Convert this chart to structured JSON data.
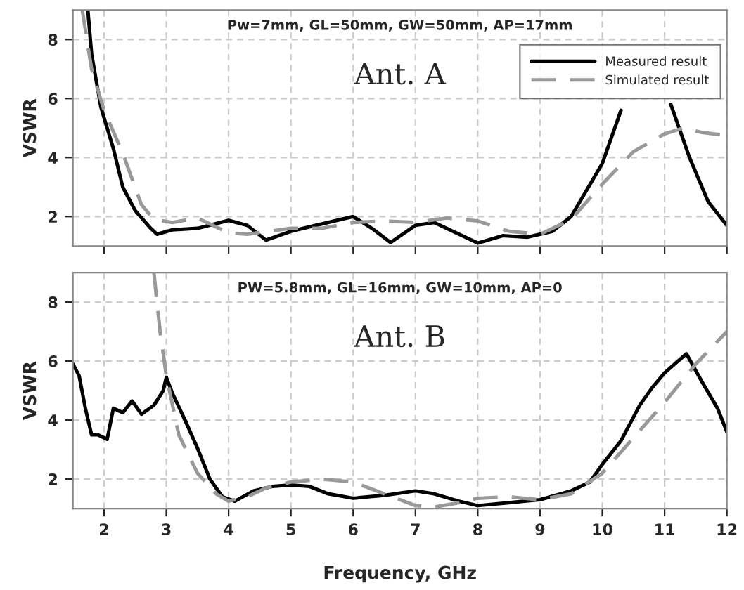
{
  "chart_data": [
    {
      "type": "line",
      "ylabel": "VSWR",
      "xlim": [
        1.5,
        12
      ],
      "ylim": [
        1,
        9
      ],
      "xticks": [
        2,
        3,
        4,
        5,
        6,
        7,
        8,
        9,
        10,
        11,
        12
      ],
      "yticks": [
        2,
        4,
        6,
        8
      ],
      "tick_labels": "y",
      "grid": true,
      "legend": "top right",
      "annotations": [
        "Pw=7mm, GL=50mm, GW=50mm, AP=17mm",
        "Ant. A"
      ],
      "series": [
        {
          "name": "Measured result",
          "color": "#000000",
          "line_style": "solid",
          "x": [
            1.74,
            1.8,
            1.95,
            2.15,
            2.3,
            2.5,
            2.75,
            2.85,
            3.1,
            3.5,
            4.0,
            4.3,
            4.6,
            5.0,
            5.5,
            6.0,
            6.3,
            6.6,
            7.0,
            7.3,
            7.7,
            8.0,
            8.4,
            8.8,
            9.2,
            9.5,
            10.0,
            10.3,
            10.7,
            11.1,
            11.4,
            11.7,
            12.0
          ],
          "values": [
            9,
            7.5,
            5.7,
            4.3,
            3.0,
            2.2,
            1.6,
            1.4,
            1.55,
            1.6,
            1.87,
            1.7,
            1.2,
            1.5,
            1.75,
            2.0,
            1.6,
            1.12,
            1.7,
            1.8,
            1.4,
            1.1,
            1.35,
            1.3,
            1.5,
            2.0,
            3.8,
            5.6,
            null,
            5.8,
            4.0,
            2.5,
            1.7
          ]
        },
        {
          "name": "Simulated result",
          "color": "#999999",
          "line_style": "dashed",
          "x": [
            1.65,
            1.8,
            2.0,
            2.3,
            2.6,
            2.8,
            3.1,
            3.5,
            4.0,
            4.3,
            5.0,
            5.5,
            6.0,
            6.5,
            7.0,
            7.5,
            8.0,
            8.5,
            9.0,
            9.5,
            10.0,
            10.5,
            11.0,
            11.3,
            11.6,
            12.0
          ],
          "values": [
            9,
            7.0,
            5.6,
            4.15,
            2.4,
            1.9,
            1.8,
            1.95,
            1.45,
            1.4,
            1.6,
            1.6,
            1.8,
            1.85,
            1.8,
            1.95,
            1.85,
            1.5,
            1.4,
            1.9,
            3.1,
            4.2,
            4.8,
            5.0,
            4.85,
            4.75
          ]
        }
      ]
    },
    {
      "type": "line",
      "xlabel": "Frequency, GHz",
      "ylabel": "VSWR",
      "xlim": [
        1.5,
        12
      ],
      "ylim": [
        1,
        9
      ],
      "xticks": [
        2,
        3,
        4,
        5,
        6,
        7,
        8,
        9,
        10,
        11,
        12
      ],
      "yticks": [
        2,
        4,
        6,
        8
      ],
      "grid": true,
      "annotations": [
        "PW=5.8mm, GL=16mm, GW=10mm, AP=0",
        "Ant. B"
      ],
      "series": [
        {
          "color": "#000000",
          "line_style": "solid",
          "x": [
            1.5,
            1.6,
            1.7,
            1.8,
            1.9,
            2.05,
            2.15,
            2.3,
            2.45,
            2.6,
            2.8,
            2.95,
            3.0,
            3.1,
            3.3,
            3.5,
            3.7,
            3.9,
            4.1,
            4.4,
            4.7,
            5.0,
            5.3,
            5.6,
            6.0,
            6.5,
            7.0,
            7.3,
            7.7,
            8.0,
            8.5,
            9.0,
            9.5,
            9.8,
            10.0,
            10.3,
            10.6,
            10.8,
            11.0,
            11.35,
            11.6,
            11.85,
            12.0
          ],
          "values": [
            5.9,
            5.5,
            4.4,
            3.5,
            3.5,
            3.35,
            4.4,
            4.25,
            4.65,
            4.2,
            4.5,
            5.0,
            5.45,
            4.9,
            4.0,
            3.05,
            2.0,
            1.4,
            1.25,
            1.6,
            1.75,
            1.8,
            1.75,
            1.5,
            1.35,
            1.45,
            1.6,
            1.5,
            1.25,
            1.1,
            1.2,
            1.3,
            1.6,
            1.9,
            2.5,
            3.3,
            4.5,
            5.1,
            5.6,
            6.25,
            5.3,
            4.4,
            3.6
          ]
        },
        {
          "color": "#999999",
          "line_style": "dashed",
          "x": [
            2.8,
            2.9,
            3.0,
            3.2,
            3.5,
            3.8,
            4.0,
            4.3,
            4.6,
            5.0,
            5.5,
            6.0,
            6.5,
            7.0,
            7.3,
            7.7,
            8.0,
            8.5,
            9.0,
            9.5,
            10.0,
            10.5,
            11.0,
            11.5,
            12.0
          ],
          "values": [
            9,
            7.0,
            5.5,
            3.5,
            2.2,
            1.5,
            1.25,
            1.4,
            1.7,
            1.9,
            2.0,
            1.9,
            1.5,
            1.1,
            1.05,
            1.2,
            1.35,
            1.4,
            1.3,
            1.5,
            2.2,
            3.4,
            4.6,
            5.9,
            7.0
          ]
        }
      ]
    }
  ]
}
